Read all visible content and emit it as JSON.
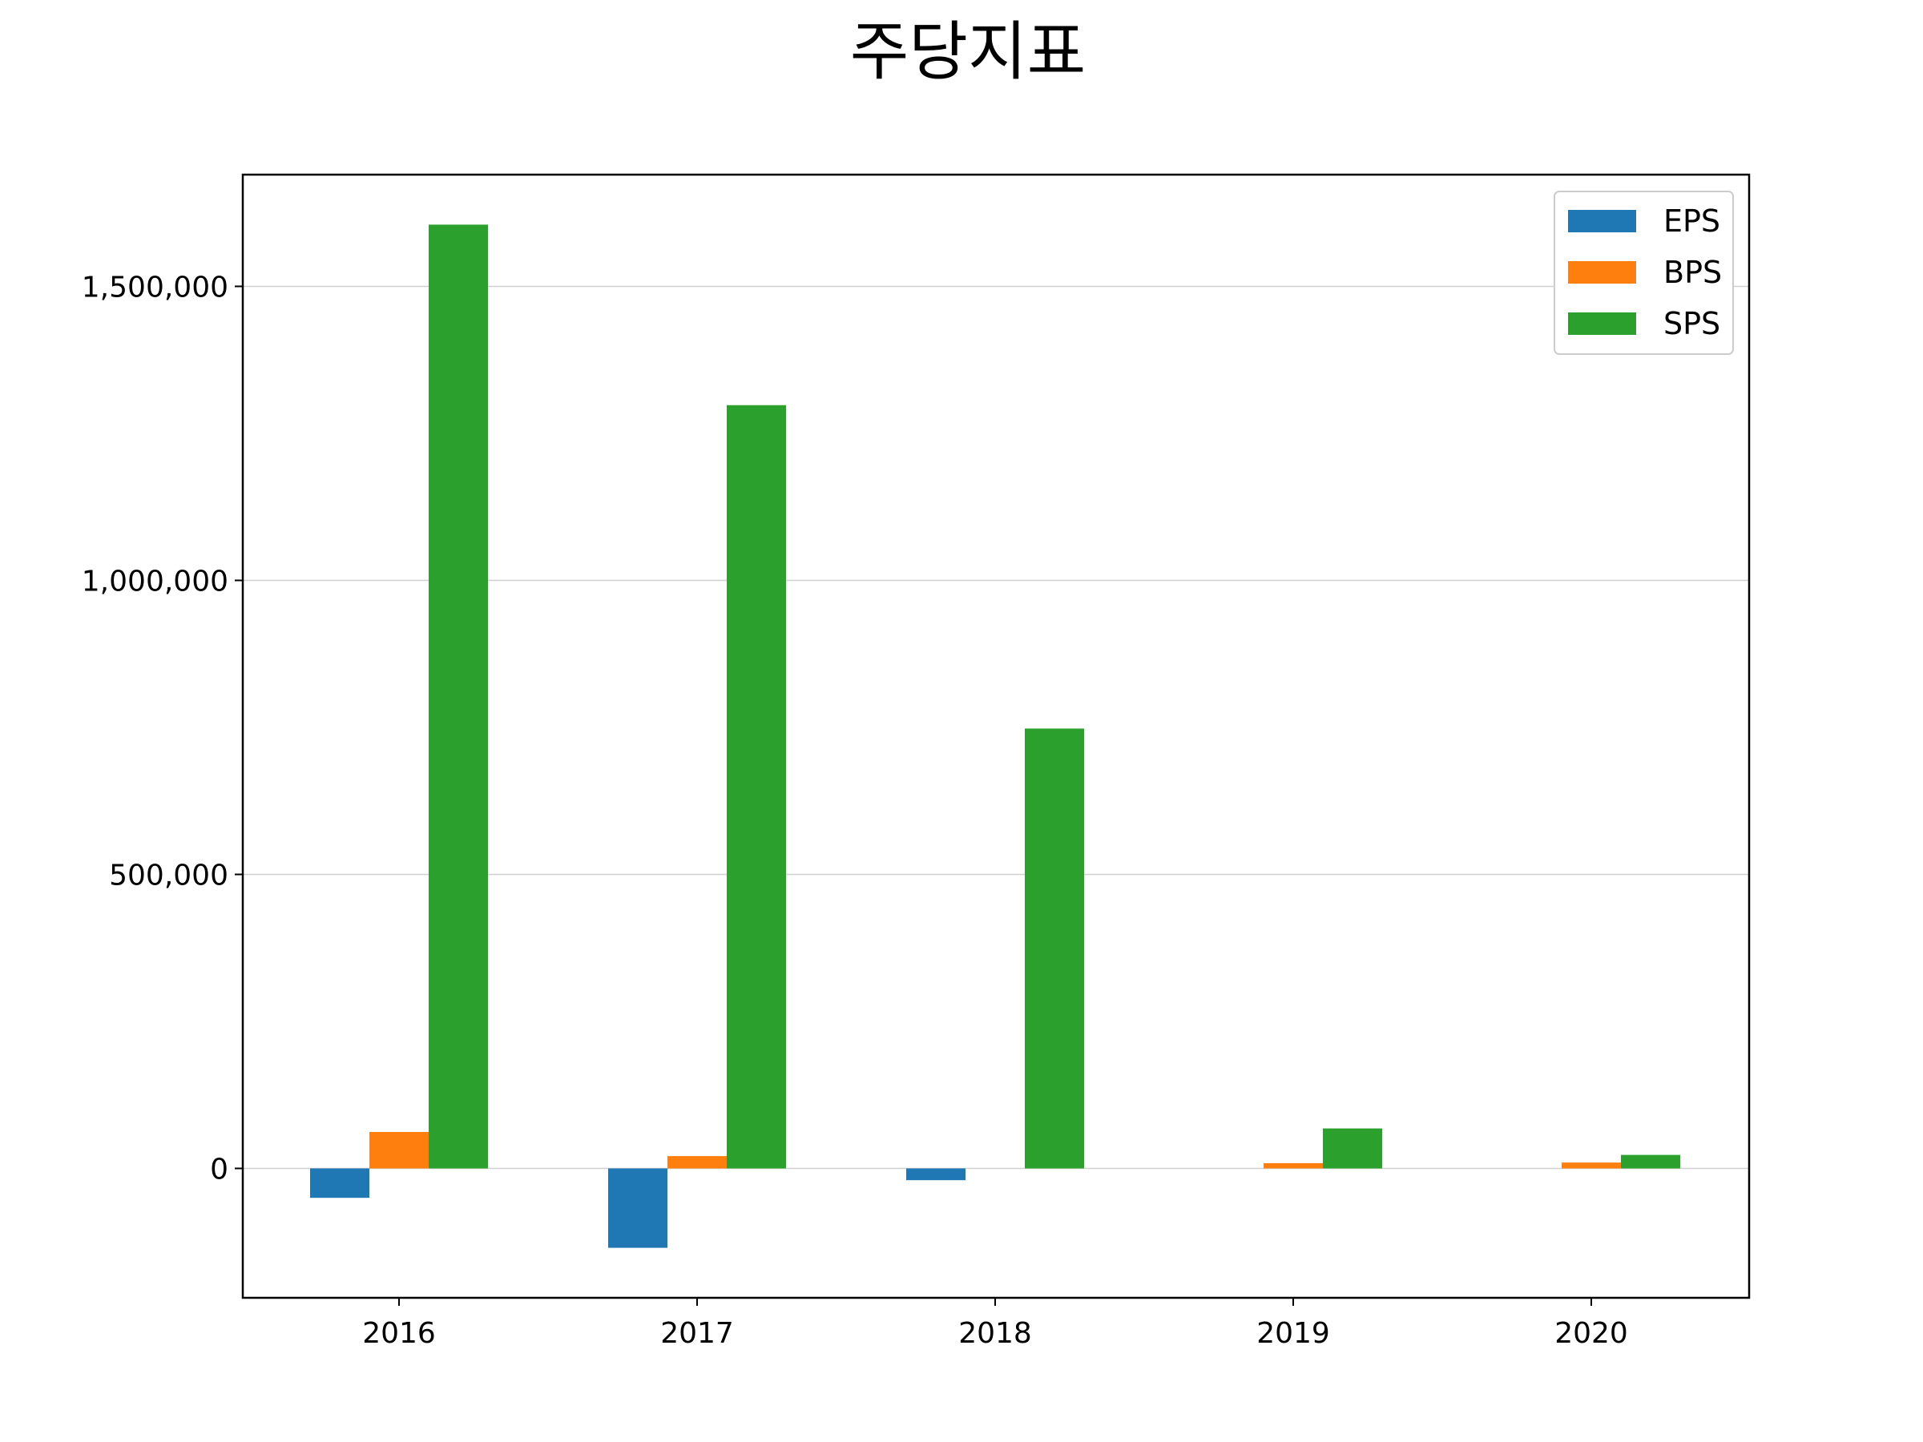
{
  "chart_data": {
    "type": "bar",
    "title": "주당지표",
    "xlabel": "",
    "ylabel": "",
    "categories": [
      "2016",
      "2017",
      "2018",
      "2019",
      "2020"
    ],
    "series": [
      {
        "name": "EPS",
        "color": "#1f77b4",
        "values": [
          -50000,
          -135000,
          -20000,
          0,
          0
        ]
      },
      {
        "name": "BPS",
        "color": "#ff7f0e",
        "values": [
          62000,
          21000,
          0,
          9000,
          10000
        ]
      },
      {
        "name": "SPS",
        "color": "#2ca02c",
        "values": [
          1605000,
          1298000,
          748000,
          68000,
          23000
        ]
      }
    ],
    "ylim": [
      -220000,
      1690000
    ],
    "yticks": [
      0,
      500000,
      1000000,
      1500000
    ],
    "ytick_labels": [
      "0",
      "500,000",
      "1,000,000",
      "1,500,000"
    ],
    "grid": "y",
    "legend": "top-right"
  }
}
